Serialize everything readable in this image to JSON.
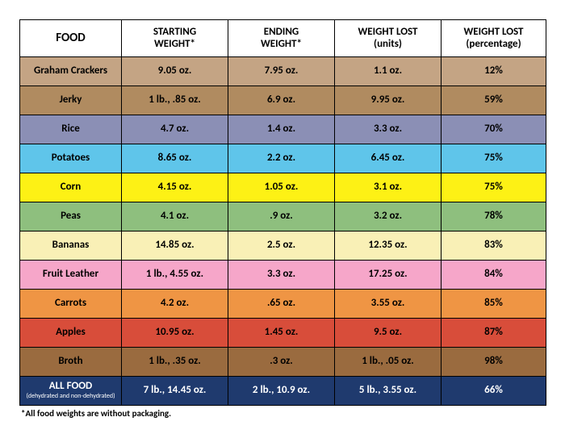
{
  "columns": [
    {
      "label": "FOOD"
    },
    {
      "label": "STARTING\nWEIGHT*"
    },
    {
      "label": "ENDING\nWEIGHT*"
    },
    {
      "label": "WEIGHT LOST\n(units)"
    },
    {
      "label": "WEIGHT LOST\n(percentage)"
    }
  ],
  "rows": [
    {
      "food": "Graham Crackers",
      "start": "9.05 oz.",
      "end": "7.95 oz.",
      "lost_units": "1.1 oz.",
      "lost_pct": "12%",
      "bg": "#c4a484"
    },
    {
      "food": "Jerky",
      "start": "1 lb., .85 oz.",
      "end": "6.9 oz.",
      "lost_units": "9.95 oz.",
      "lost_pct": "59%",
      "bg": "#b08b60"
    },
    {
      "food": "Rice",
      "start": "4.7 oz.",
      "end": "1.4 oz.",
      "lost_units": "3.3 oz.",
      "lost_pct": "70%",
      "bg": "#8b8fb5"
    },
    {
      "food": "Potatoes",
      "start": "8.65 oz.",
      "end": "2.2 oz.",
      "lost_units": "6.45 oz.",
      "lost_pct": "75%",
      "bg": "#5fc5ea"
    },
    {
      "food": "Corn",
      "start": "4.15 oz.",
      "end": "1.05 oz.",
      "lost_units": "3.1 oz.",
      "lost_pct": "75%",
      "bg": "#fdf115"
    },
    {
      "food": "Peas",
      "start": "4.1 oz.",
      "end": ".9 oz.",
      "lost_units": "3.2 oz.",
      "lost_pct": "78%",
      "bg": "#8ebf7e"
    },
    {
      "food": "Bananas",
      "start": "14.85 oz.",
      "end": "2.5 oz.",
      "lost_units": "12.35 oz.",
      "lost_pct": "83%",
      "bg": "#f9f0b6"
    },
    {
      "food": "Fruit Leather",
      "start": "1 lb., 4.55 oz.",
      "end": "3.3 oz.",
      "lost_units": "17.25 oz.",
      "lost_pct": "84%",
      "bg": "#f6a6c9"
    },
    {
      "food": "Carrots",
      "start": "4.2 oz.",
      "end": ".65 oz.",
      "lost_units": "3.55 oz.",
      "lost_pct": "85%",
      "bg": "#ef9544"
    },
    {
      "food": "Apples",
      "start": "10.95 oz.",
      "end": "1.45 oz.",
      "lost_units": "9.5 oz.",
      "lost_pct": "87%",
      "bg": "#d84d3a"
    },
    {
      "food": "Broth",
      "start": "1 lb., .35 oz.",
      "end": ".3 oz.",
      "lost_units": "1 lb., .05 oz.",
      "lost_pct": "98%",
      "bg": "#9a6b3f"
    }
  ],
  "total": {
    "label": "ALL FOOD",
    "sublabel": "(dehydrated and non-dehydrated)",
    "start": "7 lb., 14.45 oz.",
    "end": "2 lb., 10.9 oz.",
    "lost_units": "5 lb., 3.55 oz.",
    "lost_pct": "66%",
    "bg": "#1f3a6e",
    "fg": "#ffffff"
  },
  "footnote": "*All food weights are without packaging."
}
